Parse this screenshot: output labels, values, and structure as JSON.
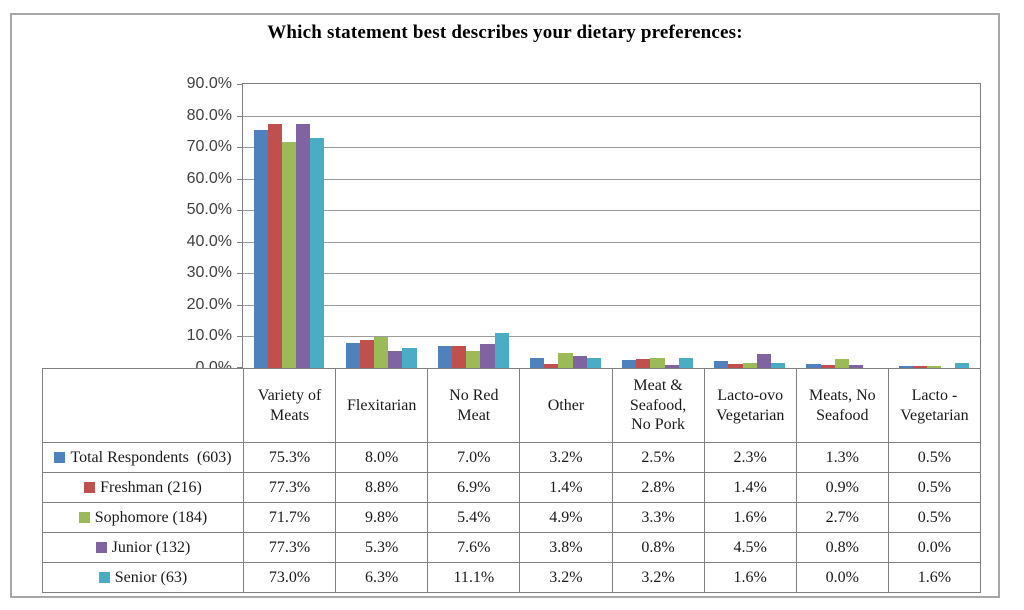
{
  "chart_data": {
    "type": "bar",
    "title": "Which statement best describes your dietary preferences:",
    "categories": [
      "Variety of\nMeats",
      "Flexitarian",
      "No Red\nMeat",
      "Other",
      "Meat &\nSeafood,\nNo Pork",
      "Lacto-ovo\nVegetarian",
      "Meats, No\nSeafood",
      "Lacto -\nVegetarian"
    ],
    "series": [
      {
        "name": "Total Respondents  (603)",
        "color": "#4F81BD",
        "values": [
          75.3,
          8.0,
          7.0,
          3.2,
          2.5,
          2.3,
          1.3,
          0.5
        ],
        "formatted": [
          "75.3%",
          "8.0%",
          "7.0%",
          "3.2%",
          "2.5%",
          "2.3%",
          "1.3%",
          "0.5%"
        ]
      },
      {
        "name": "Freshman (216)",
        "color": "#C0504D",
        "values": [
          77.3,
          8.8,
          6.9,
          1.4,
          2.8,
          1.4,
          0.9,
          0.5
        ],
        "formatted": [
          "77.3%",
          "8.8%",
          "6.9%",
          "1.4%",
          "2.8%",
          "1.4%",
          "0.9%",
          "0.5%"
        ]
      },
      {
        "name": "Sophomore (184)",
        "color": "#9BBB59",
        "values": [
          71.7,
          9.8,
          5.4,
          4.9,
          3.3,
          1.6,
          2.7,
          0.5
        ],
        "formatted": [
          "71.7%",
          "9.8%",
          "5.4%",
          "4.9%",
          "3.3%",
          "1.6%",
          "2.7%",
          "0.5%"
        ]
      },
      {
        "name": "Junior (132)",
        "color": "#8064A2",
        "values": [
          77.3,
          5.3,
          7.6,
          3.8,
          0.8,
          4.5,
          0.8,
          0.0
        ],
        "formatted": [
          "77.3%",
          "5.3%",
          "7.6%",
          "3.8%",
          "0.8%",
          "4.5%",
          "0.8%",
          "0.0%"
        ]
      },
      {
        "name": "Senior (63)",
        "color": "#4BACC6",
        "values": [
          73.0,
          6.3,
          11.1,
          3.2,
          3.2,
          1.6,
          0.0,
          1.6
        ],
        "formatted": [
          "73.0%",
          "6.3%",
          "11.1%",
          "3.2%",
          "3.2%",
          "1.6%",
          "0.0%",
          "1.6%"
        ]
      }
    ],
    "y_axis": {
      "ticks": [
        "90.0%",
        "80.0%",
        "70.0%",
        "60.0%",
        "50.0%",
        "40.0%",
        "30.0%",
        "20.0%",
        "10.0%",
        "0.0%"
      ],
      "min": 0,
      "max": 90
    },
    "grid": true,
    "legend_position": "table-left",
    "plot_border_color": "#7f7f7f",
    "gridline_color": "#9d9d9d"
  }
}
